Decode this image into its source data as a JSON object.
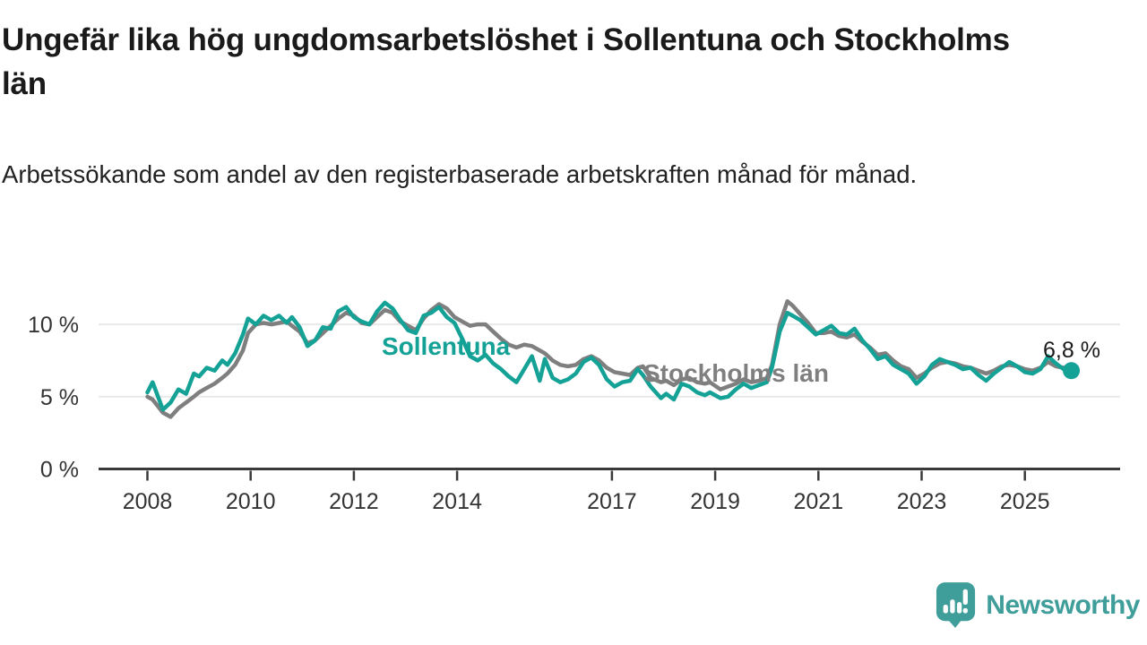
{
  "header": {
    "title": "Ungefär lika hög ungdomsarbetslöshet i Sollentuna och Stockholms län",
    "subtitle": "Arbetssökande som andel av den registerbaserade arbetskraften månad för månad."
  },
  "chart_data": {
    "type": "line",
    "unit": "%",
    "grid": "horizontal",
    "xlim": [
      2008,
      2026
    ],
    "ylim": [
      0,
      12.5
    ],
    "x_ticks": [
      "2008",
      "2010",
      "2012",
      "2014",
      "2017",
      "2019",
      "2021",
      "2023",
      "2025"
    ],
    "x_tick_years": [
      2008,
      2010,
      2012,
      2014,
      2017,
      2019,
      2021,
      2023,
      2025
    ],
    "y_ticks": [
      {
        "value": 0,
        "label": "0 %"
      },
      {
        "value": 5,
        "label": "5 %"
      },
      {
        "value": 10,
        "label": "10 %"
      }
    ],
    "x": [
      2008.0,
      2008.1,
      2008.3,
      2008.45,
      2008.6,
      2008.75,
      2008.9,
      2009.0,
      2009.15,
      2009.3,
      2009.45,
      2009.55,
      2009.7,
      2009.85,
      2009.95,
      2010.1,
      2010.25,
      2010.4,
      2010.55,
      2010.7,
      2010.8,
      2010.95,
      2011.1,
      2011.25,
      2011.4,
      2011.55,
      2011.7,
      2011.85,
      2012.0,
      2012.15,
      2012.3,
      2012.45,
      2012.6,
      2012.75,
      2012.9,
      2013.05,
      2013.2,
      2013.35,
      2013.5,
      2013.65,
      2013.8,
      2013.95,
      2014.1,
      2014.25,
      2014.4,
      2014.55,
      2014.7,
      2014.85,
      2015.0,
      2015.15,
      2015.3,
      2015.45,
      2015.6,
      2015.7,
      2015.85,
      2016.0,
      2016.15,
      2016.3,
      2016.45,
      2016.6,
      2016.75,
      2016.9,
      2017.05,
      2017.2,
      2017.35,
      2017.5,
      2017.6,
      2017.75,
      2017.95,
      2018.05,
      2018.2,
      2018.35,
      2018.5,
      2018.65,
      2018.8,
      2018.9,
      2019.1,
      2019.25,
      2019.4,
      2019.55,
      2019.7,
      2019.85,
      2020.0,
      2020.1,
      2020.25,
      2020.4,
      2020.5,
      2020.65,
      2020.8,
      2020.95,
      2021.1,
      2021.25,
      2021.4,
      2021.55,
      2021.7,
      2021.85,
      2022.0,
      2022.15,
      2022.3,
      2022.45,
      2022.6,
      2022.75,
      2022.9,
      2023.05,
      2023.2,
      2023.35,
      2023.5,
      2023.65,
      2023.8,
      2023.95,
      2024.1,
      2024.25,
      2024.4,
      2024.55,
      2024.7,
      2024.85,
      2025.0,
      2025.15,
      2025.3,
      2025.45,
      2025.6,
      2025.75,
      2025.9
    ],
    "series": [
      {
        "name": "Stockholms län",
        "key": "stockholms-lan",
        "color": "#7f7f7f",
        "values": [
          5.0,
          4.8,
          3.9,
          3.6,
          4.2,
          4.6,
          5.0,
          5.3,
          5.6,
          5.9,
          6.3,
          6.6,
          7.2,
          8.2,
          9.4,
          10.0,
          10.1,
          10.0,
          10.1,
          10.2,
          9.9,
          9.5,
          8.7,
          8.9,
          9.4,
          9.9,
          10.4,
          10.8,
          10.6,
          10.1,
          10.0,
          10.5,
          11.0,
          10.8,
          10.2,
          9.9,
          9.6,
          10.4,
          11.0,
          11.4,
          11.1,
          10.5,
          10.2,
          9.9,
          10.0,
          10.0,
          9.5,
          9.0,
          8.6,
          8.4,
          8.6,
          8.5,
          8.2,
          8.0,
          7.5,
          7.2,
          7.1,
          7.2,
          7.6,
          7.8,
          7.5,
          7.0,
          6.7,
          6.6,
          6.5,
          7.0,
          7.1,
          6.3,
          6.0,
          6.1,
          5.8,
          6.2,
          6.3,
          6.0,
          5.9,
          6.0,
          5.5,
          5.7,
          5.9,
          6.2,
          6.0,
          6.1,
          6.3,
          7.2,
          10.0,
          11.6,
          11.3,
          10.7,
          10.1,
          9.4,
          9.4,
          9.5,
          9.2,
          9.1,
          9.3,
          8.8,
          8.4,
          7.9,
          8.0,
          7.5,
          7.1,
          6.9,
          6.3,
          6.6,
          7.0,
          7.3,
          7.4,
          7.3,
          7.1,
          7.0,
          6.8,
          6.6,
          6.8,
          7.1,
          7.2,
          7.1,
          6.9,
          6.8,
          7.0,
          7.4,
          7.1,
          7.0,
          6.9
        ]
      },
      {
        "name": "Sollentuna",
        "key": "sollentuna",
        "color": "#14a196",
        "values": [
          5.3,
          6.0,
          4.1,
          4.6,
          5.5,
          5.2,
          6.6,
          6.4,
          7.0,
          6.8,
          7.5,
          7.2,
          8.0,
          9.3,
          10.4,
          10.0,
          10.6,
          10.3,
          10.6,
          10.1,
          10.5,
          9.8,
          8.5,
          8.9,
          9.8,
          9.7,
          10.9,
          11.2,
          10.5,
          10.2,
          10.0,
          10.9,
          11.5,
          11.1,
          10.3,
          9.6,
          9.4,
          10.6,
          10.8,
          11.2,
          10.5,
          10.1,
          9.0,
          7.8,
          7.5,
          7.9,
          7.3,
          6.9,
          6.4,
          6.0,
          6.9,
          7.8,
          6.1,
          7.6,
          6.3,
          6.0,
          6.2,
          6.6,
          7.4,
          7.7,
          7.2,
          6.2,
          5.7,
          6.0,
          6.1,
          6.9,
          6.5,
          5.7,
          4.9,
          5.2,
          4.8,
          5.9,
          5.7,
          5.3,
          5.1,
          5.3,
          4.9,
          5.0,
          5.5,
          5.9,
          5.6,
          5.8,
          6.0,
          7.0,
          9.5,
          10.8,
          10.6,
          10.3,
          9.8,
          9.3,
          9.6,
          9.9,
          9.4,
          9.3,
          9.7,
          8.9,
          8.3,
          7.6,
          7.8,
          7.2,
          6.9,
          6.6,
          5.9,
          6.4,
          7.2,
          7.6,
          7.4,
          7.2,
          6.9,
          7.0,
          6.5,
          6.1,
          6.6,
          7.0,
          7.4,
          7.1,
          6.7,
          6.6,
          6.9,
          7.8,
          7.3,
          6.9,
          6.8
        ]
      }
    ],
    "end_annotation": {
      "series": "Sollentuna",
      "text": "6,8 %",
      "value": 6.8
    }
  },
  "logo": {
    "text": "Newsworthy",
    "color": "#3f9e9a",
    "icon": "newsworthy-chart-bubble-icon"
  }
}
